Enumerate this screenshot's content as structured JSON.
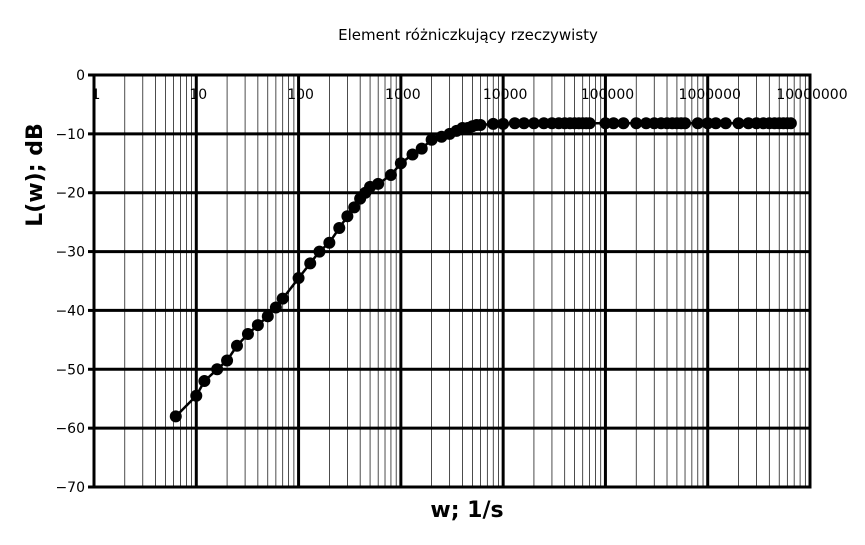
{
  "chart_data": {
    "type": "scatter",
    "title": "Element różniczkujący rzeczywisty",
    "xlabel": "w; 1/s",
    "ylabel": "L(w); dB",
    "x_scale": "log",
    "xlim": [
      1,
      10000000
    ],
    "ylim": [
      -70,
      0
    ],
    "grid": true,
    "x_tick_labels": [
      "1",
      "10",
      "100",
      "1000",
      "10000",
      "100000",
      "1000000",
      "10000000"
    ],
    "y_ticks": [
      0,
      -10,
      -20,
      -30,
      -40,
      -50,
      -60,
      -70
    ],
    "line_color": "#000000",
    "marker_color": "#000000",
    "series": [
      {
        "x": [
          6.3,
          10,
          12,
          16,
          20,
          25,
          32,
          40,
          50,
          60,
          70,
          100,
          130,
          160,
          200,
          250,
          300,
          350,
          400,
          450,
          500,
          600,
          800,
          1000,
          1300,
          1600,
          2000,
          2500,
          3000,
          3500,
          4000,
          4500,
          5000,
          5500,
          6000,
          8000,
          10000,
          13000,
          16000,
          20000,
          25000,
          30000,
          35000,
          40000,
          45000,
          50000,
          55000,
          60000,
          65000,
          70000,
          100000,
          120000,
          150000,
          200000,
          250000,
          300000,
          350000,
          400000,
          450000,
          500000,
          550000,
          600000,
          800000,
          1000000,
          1200000,
          1500000,
          2000000,
          2500000,
          3000000,
          3500000,
          4000000,
          4500000,
          5000000,
          5500000,
          6000000,
          6500000
        ],
        "y": [
          -58,
          -54.5,
          -52,
          -50,
          -48.5,
          -46,
          -44,
          -42.5,
          -41,
          -39.5,
          -38,
          -34.5,
          -32,
          -30,
          -28.5,
          -26,
          -24,
          -22.5,
          -21,
          -20,
          -19,
          -18.5,
          -17,
          -15,
          -13.5,
          -12.5,
          -11,
          -10.5,
          -10,
          -9.5,
          -9,
          -9,
          -8.7,
          -8.5,
          -8.5,
          -8.3,
          -8.3,
          -8.2,
          -8.2,
          -8.2,
          -8.2,
          -8.2,
          -8.2,
          -8.2,
          -8.2,
          -8.2,
          -8.2,
          -8.2,
          -8.2,
          -8.2,
          -8.2,
          -8.2,
          -8.2,
          -8.2,
          -8.2,
          -8.2,
          -8.2,
          -8.2,
          -8.2,
          -8.2,
          -8.2,
          -8.2,
          -8.2,
          -8.2,
          -8.2,
          -8.2,
          -8.2,
          -8.2,
          -8.2,
          -8.2,
          -8.2,
          -8.2,
          -8.2,
          -8.2,
          -8.2,
          -8.2
        ]
      }
    ]
  }
}
